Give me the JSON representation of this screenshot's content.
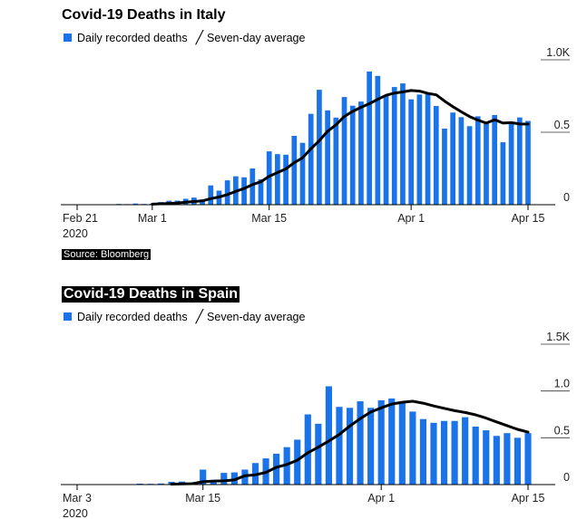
{
  "source_label": "Source: Bloomberg",
  "colors": {
    "bar": "#1a73e8",
    "line": "#000000"
  },
  "chart_data": [
    {
      "type": "bar",
      "title": "Covid-19 Deaths in Italy",
      "legend": [
        "Daily recorded deaths",
        "Seven-day average"
      ],
      "x_labels": [
        "Feb 21\n2020",
        "Mar 1",
        "Mar 15",
        "Apr 1",
        "Apr 15"
      ],
      "x_label_index": [
        0,
        9,
        23,
        40,
        54
      ],
      "y_ticks": [
        "0",
        "0.5",
        "1.0K"
      ],
      "y_tick_values": [
        0,
        500,
        1000
      ],
      "ylim": [
        0,
        1000
      ],
      "categories": [
        "Feb 21",
        "Feb 22",
        "Feb 23",
        "Feb 24",
        "Feb 25",
        "Feb 26",
        "Feb 27",
        "Feb 28",
        "Feb 29",
        "Mar 1",
        "Mar 2",
        "Mar 3",
        "Mar 4",
        "Mar 5",
        "Mar 6",
        "Mar 7",
        "Mar 8",
        "Mar 9",
        "Mar 10",
        "Mar 11",
        "Mar 12",
        "Mar 13",
        "Mar 14",
        "Mar 15",
        "Mar 16",
        "Mar 17",
        "Mar 18",
        "Mar 19",
        "Mar 20",
        "Mar 21",
        "Mar 22",
        "Mar 23",
        "Mar 24",
        "Mar 25",
        "Mar 26",
        "Mar 27",
        "Mar 28",
        "Mar 29",
        "Mar 30",
        "Mar 31",
        "Apr 1",
        "Apr 2",
        "Apr 3",
        "Apr 4",
        "Apr 5",
        "Apr 6",
        "Apr 7",
        "Apr 8",
        "Apr 9",
        "Apr 10",
        "Apr 11",
        "Apr 12",
        "Apr 13",
        "Apr 14",
        "Apr 15"
      ],
      "series": [
        {
          "name": "Daily recorded deaths",
          "values": [
            1,
            2,
            3,
            2,
            3,
            5,
            4,
            8,
            5,
            6,
            18,
            27,
            28,
            41,
            49,
            36,
            133,
            97,
            168,
            196,
            189,
            250,
            175,
            368,
            349,
            345,
            475,
            427,
            627,
            793,
            651,
            601,
            743,
            683,
            712,
            919,
            889,
            756,
            812,
            837,
            727,
            760,
            766,
            681,
            525,
            636,
            604,
            542,
            610,
            570,
            619,
            431,
            566,
            602,
            578
          ]
        },
        {
          "name": "Seven-day average",
          "values": [
            null,
            null,
            null,
            null,
            null,
            null,
            null,
            null,
            null,
            4,
            6,
            9,
            12,
            17,
            22,
            26,
            42,
            53,
            70,
            92,
            112,
            139,
            158,
            196,
            222,
            247,
            290,
            323,
            386,
            441,
            507,
            551,
            609,
            644,
            672,
            697,
            727,
            755,
            770,
            778,
            788,
            784,
            768,
            758,
            715,
            676,
            641,
            608,
            584,
            563,
            586,
            563,
            566,
            557,
            556
          ]
        }
      ]
    },
    {
      "type": "bar",
      "title": "Covid-19 Deaths in Spain",
      "legend": [
        "Daily recorded deaths",
        "Seven-day average"
      ],
      "x_labels": [
        "Mar 3\n2020",
        "Mar 15",
        "Apr 1",
        "Apr 15"
      ],
      "x_label_index": [
        0,
        12,
        29,
        43
      ],
      "y_ticks": [
        "0",
        "0.5",
        "1.0",
        "1.5K"
      ],
      "y_tick_values": [
        0,
        500,
        1000,
        1500
      ],
      "ylim": [
        0,
        1500
      ],
      "categories": [
        "Mar 3",
        "Mar 4",
        "Mar 5",
        "Mar 6",
        "Mar 7",
        "Mar 8",
        "Mar 9",
        "Mar 10",
        "Mar 11",
        "Mar 12",
        "Mar 13",
        "Mar 14",
        "Mar 15",
        "Mar 16",
        "Mar 17",
        "Mar 18",
        "Mar 19",
        "Mar 20",
        "Mar 21",
        "Mar 22",
        "Mar 23",
        "Mar 24",
        "Mar 25",
        "Mar 26",
        "Mar 27",
        "Mar 28",
        "Mar 29",
        "Mar 30",
        "Mar 31",
        "Apr 1",
        "Apr 2",
        "Apr 3",
        "Apr 4",
        "Apr 5",
        "Apr 6",
        "Apr 7",
        "Apr 8",
        "Apr 9",
        "Apr 10",
        "Apr 11",
        "Apr 12",
        "Apr 13",
        "Apr 14",
        "Apr 15"
      ],
      "series": [
        {
          "name": "Daily recorded deaths",
          "values": [
            1,
            1,
            1,
            2,
            3,
            5,
            10,
            8,
            12,
            30,
            32,
            22,
            160,
            40,
            125,
            130,
            160,
            230,
            280,
            330,
            400,
            480,
            750,
            650,
            1050,
            830,
            820,
            890,
            820,
            900,
            920,
            880,
            780,
            700,
            660,
            680,
            680,
            720,
            620,
            580,
            520,
            550,
            500,
            550
          ]
        },
        {
          "name": "Seven-day average",
          "values": [
            null,
            null,
            null,
            null,
            null,
            null,
            null,
            null,
            null,
            5,
            8,
            10,
            30,
            38,
            40,
            50,
            95,
            105,
            130,
            185,
            215,
            260,
            340,
            400,
            465,
            535,
            625,
            705,
            775,
            820,
            860,
            880,
            890,
            870,
            840,
            815,
            790,
            770,
            745,
            710,
            670,
            630,
            590,
            560
          ]
        }
      ]
    }
  ]
}
